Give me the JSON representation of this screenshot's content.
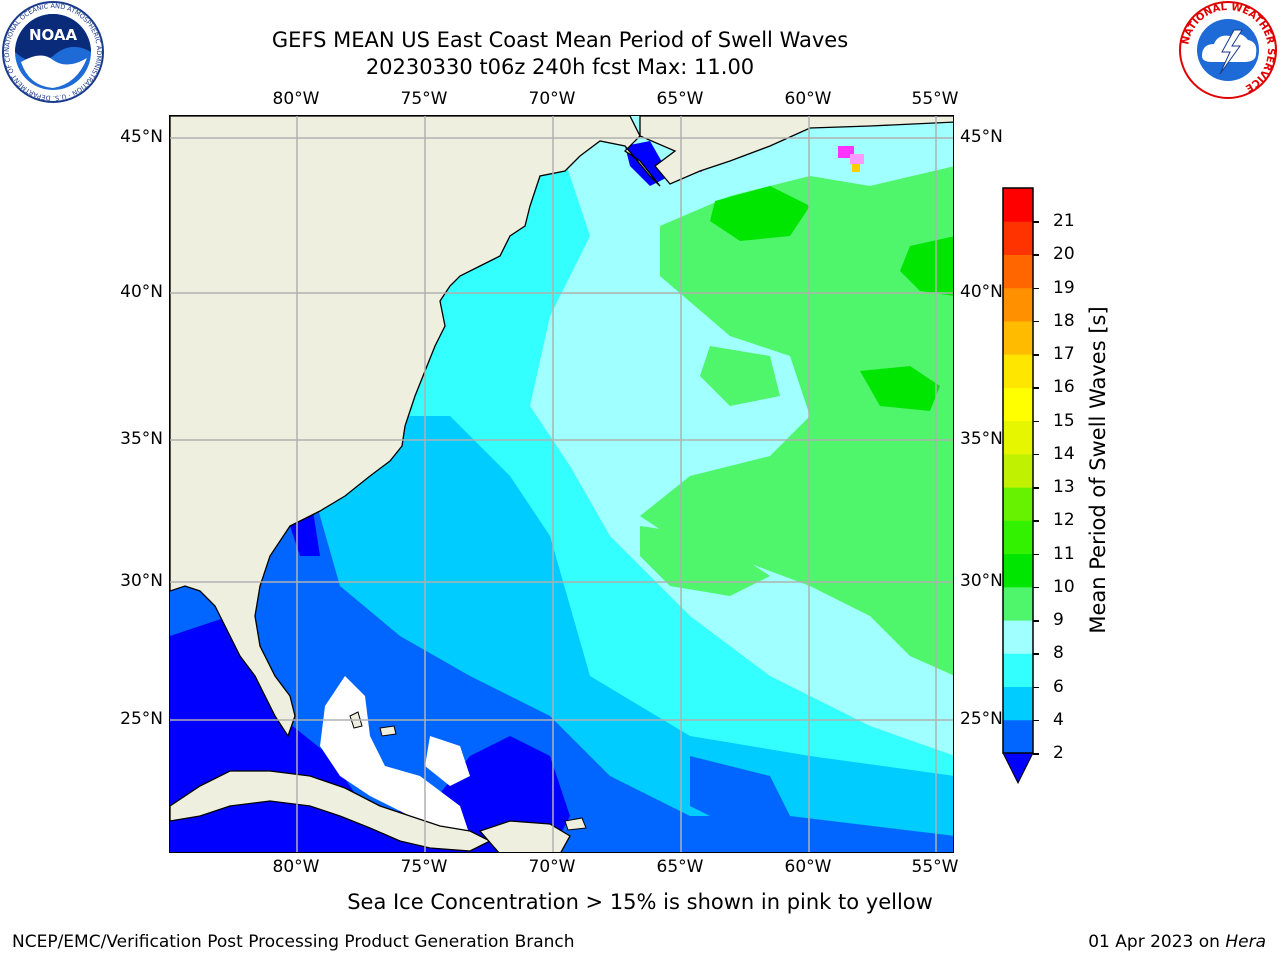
{
  "title": {
    "line1": "GEFS MEAN US East Coast Mean Period of Swell Waves",
    "line2": "20230330 t06z 240h fcst   Max: 11.00"
  },
  "map": {
    "lon_labels": [
      "80°W",
      "75°W",
      "70°W",
      "65°W",
      "60°W",
      "55°W"
    ],
    "lat_labels": [
      "45°N",
      "40°N",
      "35°N",
      "30°N",
      "25°N"
    ],
    "land_color": "#efefdf",
    "grid_color": "#b0b0b0"
  },
  "colorbar": {
    "label": "Mean Period of Swell Waves [s]",
    "ticks": [
      "2",
      "4",
      "6",
      "8",
      "9",
      "10",
      "11",
      "12",
      "13",
      "14",
      "15",
      "16",
      "17",
      "18",
      "19",
      "20",
      "21"
    ],
    "colors": [
      "#0066ff",
      "#00ccff",
      "#33ffff",
      "#a0ffff",
      "#4ff56b",
      "#00e600",
      "#33f200",
      "#66f200",
      "#c0f200",
      "#e6f500",
      "#ffff00",
      "#ffe600",
      "#ffbb00",
      "#ff9100",
      "#ff6600",
      "#ff3300",
      "#ff0000"
    ],
    "under_color": "#0000ff"
  },
  "legend_note": "Sea Ice Concentration > 15% is shown in pink to yellow",
  "footer": {
    "left": "NCEP/EMC/Verification Post Processing Product Generation Branch",
    "date": "01 Apr 2023 on",
    "machine": "Hera"
  },
  "logos": {
    "noaa": {
      "text": "NOAA",
      "ring_text": "NATIONAL OCEANIC AND ATMOSPHERIC ADMINISTRATION · U.S. DEPARTMENT OF COMMERCE"
    },
    "nws": {
      "ring_text": "NATIONAL WEATHER SERVICE"
    }
  }
}
